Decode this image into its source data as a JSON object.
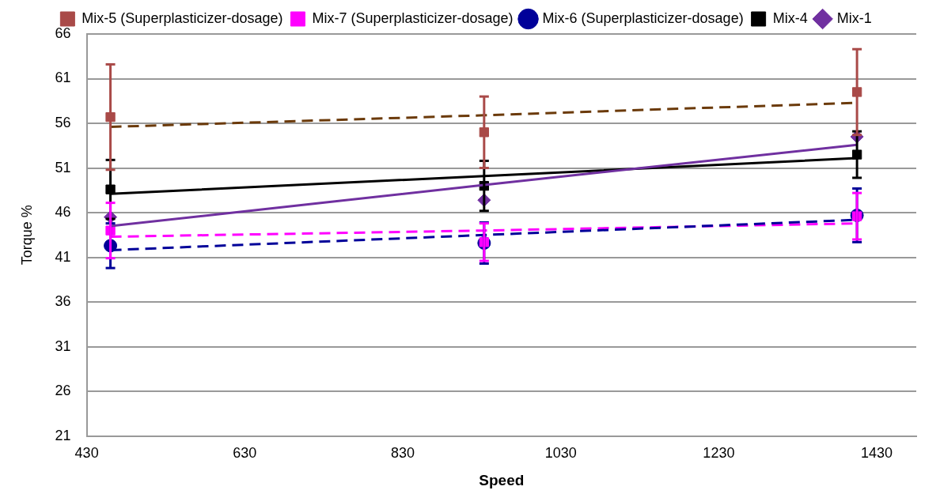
{
  "chart_data": {
    "type": "scatter",
    "xlabel": "Speed",
    "ylabel": "Torque %",
    "x": [
      460,
      933,
      1405
    ],
    "xlim": [
      430,
      1480
    ],
    "xticks": [
      430,
      630,
      830,
      1030,
      1230,
      1430
    ],
    "ylim": [
      21,
      66
    ],
    "yticks": [
      21,
      26,
      31,
      36,
      41,
      46,
      51,
      56,
      61,
      66
    ],
    "grid": "y",
    "legend": "top",
    "series": [
      {
        "name": "Mix-1",
        "marker": "diamond",
        "color": "#7030a0",
        "values": [
          45.5,
          47.4,
          54.5
        ]
      },
      {
        "name": "Mix-4",
        "marker": "square",
        "color": "#000000",
        "values": [
          48.6,
          49.0,
          52.5
        ],
        "errors": [
          3.3,
          2.8,
          2.6
        ]
      },
      {
        "name": "Mix-6 (Superplasticizer-dosage)",
        "marker": "circle",
        "color": "#000099",
        "values": [
          42.3,
          42.6,
          45.7
        ],
        "errors": [
          2.5,
          2.3,
          3.0
        ]
      },
      {
        "name": "Mix-7 (Superplasticizer-dosage)",
        "marker": "square",
        "color": "#ff00ff",
        "values": [
          44.0,
          42.7,
          45.6
        ],
        "errors": [
          3.1,
          2.1,
          2.6
        ]
      },
      {
        "name": "Mix-5 (Superplasticizer-dosage)",
        "marker": "square",
        "color": "#a94a48",
        "values": [
          56.7,
          55.0,
          59.5
        ],
        "errors": [
          5.9,
          4.0,
          4.8
        ]
      },
      {
        "type": "line",
        "color": "#7030a0",
        "line_style": "solid",
        "marker": "none",
        "values": [
          44.5,
          49.1,
          53.6
        ]
      },
      {
        "type": "line",
        "color": "#000000",
        "line_style": "solid",
        "marker": "none",
        "values": [
          48.1,
          50.1,
          52.1
        ]
      },
      {
        "type": "line",
        "color": "#000099",
        "line_style": "dashed",
        "marker": "none",
        "values": [
          41.8,
          43.5,
          45.2
        ]
      },
      {
        "type": "line",
        "color": "#ff00ff",
        "line_style": "dashed",
        "marker": "none",
        "values": [
          43.3,
          44.0,
          44.8
        ]
      },
      {
        "type": "line",
        "color": "#6b3a0a",
        "line_style": "dashed",
        "marker": "none",
        "values": [
          55.6,
          56.9,
          58.3
        ]
      }
    ]
  }
}
